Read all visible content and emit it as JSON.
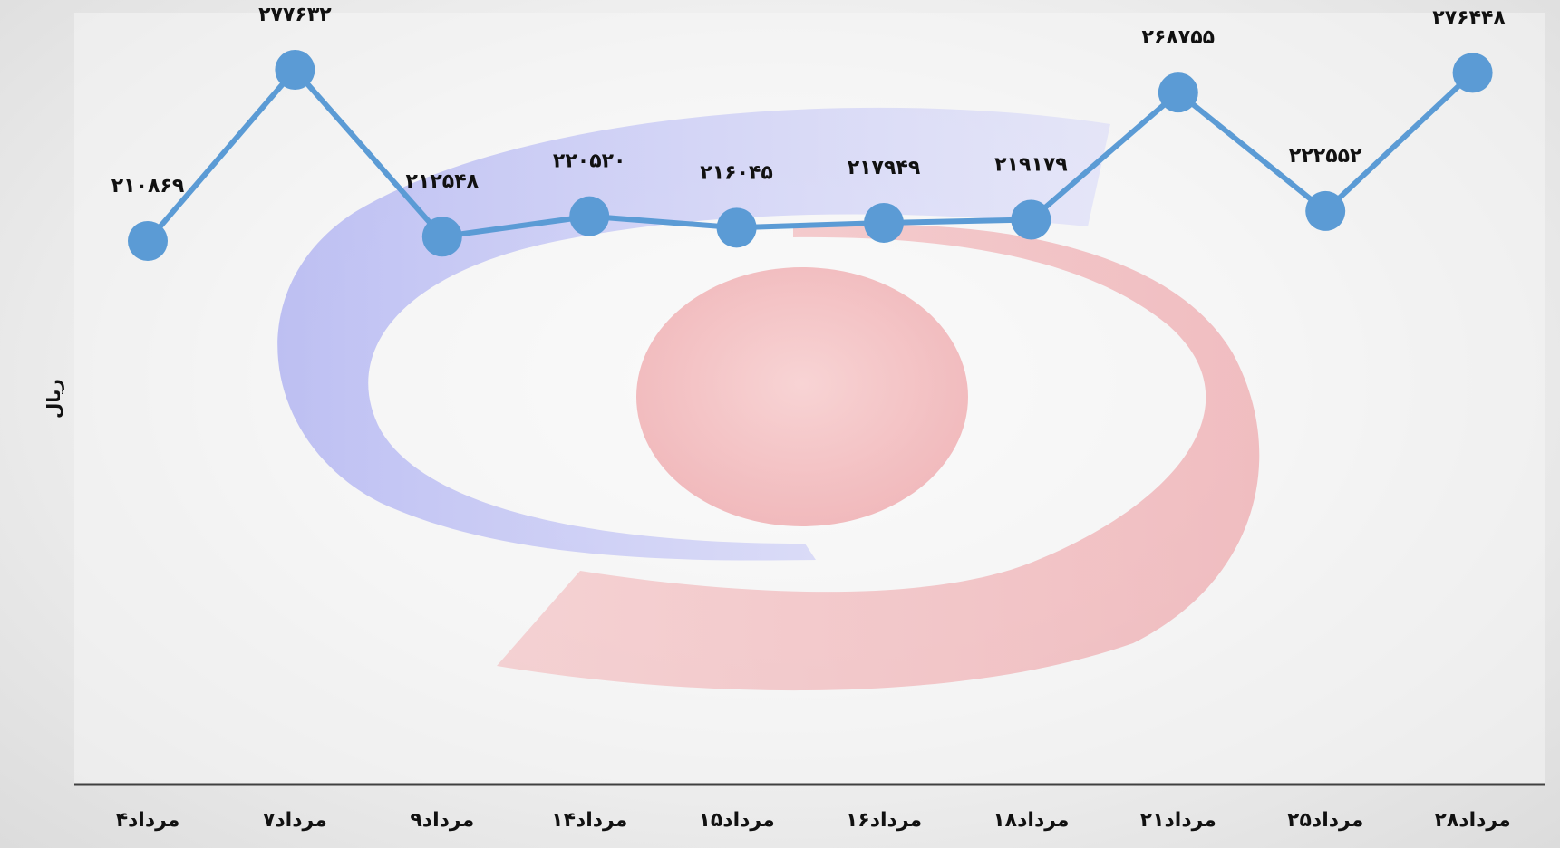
{
  "chart_data": {
    "type": "line",
    "title": "",
    "xlabel": "",
    "ylabel": "ریال",
    "categories": [
      "۴مرداد",
      "۷مرداد",
      "۹مرداد",
      "۱۴مرداد",
      "۱۵مرداد",
      "۱۶مرداد",
      "۱۸مرداد",
      "۲۱مرداد",
      "۲۵مرداد",
      "۲۸مرداد"
    ],
    "series": [
      {
        "values": [
          210869,
          277632,
          212548,
          220520,
          216045,
          217949,
          219179,
          268755,
          222552,
          276448
        ],
        "value_labels": [
          "۲۱۰۸۶۹",
          "۲۷۷۶۳۲",
          "۲۱۲۵۴۸",
          "۲۲۰۵۲۰",
          "۲۱۶۰۴۵",
          "۲۱۷۹۴۹",
          "۲۱۹۱۷۹",
          "۲۶۸۷۵۵",
          "۲۲۲۵۵۲",
          "۲۷۶۴۴۸"
        ],
        "color": "#5b9bd5"
      }
    ],
    "grid": false,
    "legend": "none",
    "axis_color": "#404040"
  }
}
